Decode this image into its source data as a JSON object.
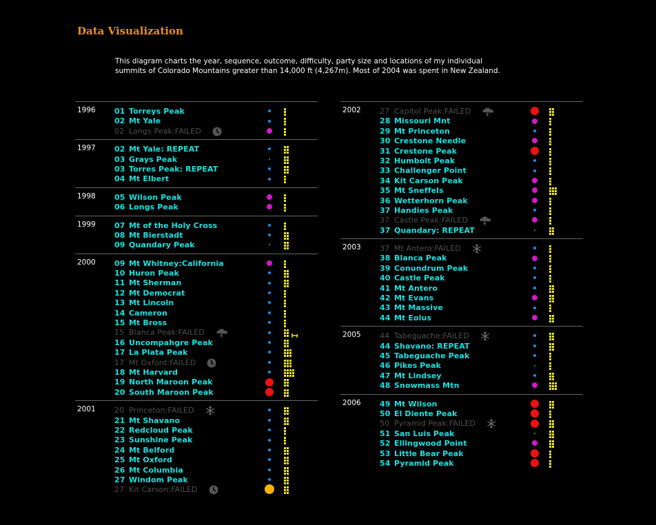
{
  "header": {
    "title": "Data Visualization",
    "intro": "This diagram charts the year, sequence, outcome, difficulty, party size and locations of my individual summits of Colorado Mountains greater than 14,000 ft (4,267m). Most of 2004 was spent in New Zealand."
  },
  "colors": {
    "entry": "#1de0e0",
    "failed": "#505050",
    "party": "#f2e81a",
    "outcome_blue": "#1e8ff0",
    "outcome_magenta": "#d21ac8",
    "outcome_green": "#22cc22",
    "outcome_red": "#ee1111",
    "outcome_orange": "#ffb300"
  },
  "columns": [
    {
      "groups": [
        {
          "year": "1996",
          "rows": [
            {
              "num": "01",
              "name": "Torreys Peak",
              "dot": "blue",
              "size": 4,
              "party": 1
            },
            {
              "num": "02",
              "name": "Mt Yale",
              "dot": "blue",
              "size": 4,
              "party": 1
            },
            {
              "num": "02",
              "name": "Longs Peak:FAILED",
              "failed": true,
              "cause": "clock-icon",
              "dot": "magenta",
              "size": 8,
              "party": 1
            }
          ]
        },
        {
          "year": "1997",
          "rows": [
            {
              "num": "02",
              "name": "Mt Yale: REPEAT",
              "dot": "blue",
              "size": 4,
              "party": 2
            },
            {
              "num": "03",
              "name": "Grays Peak",
              "dot": "green",
              "size": 2,
              "party": 2
            },
            {
              "num": "03",
              "name": "Torres Peak: REPEAT",
              "dot": "blue",
              "size": 4,
              "party": 2
            },
            {
              "num": "04",
              "name": "Mt Elbert",
              "dot": "blue",
              "size": 4,
              "party": 1
            }
          ]
        },
        {
          "year": "1998",
          "rows": [
            {
              "num": "05",
              "name": "Wilson Peak",
              "dot": "magenta",
              "size": 8,
              "party": 1
            },
            {
              "num": "06",
              "name": "Longs Peak",
              "dot": "magenta",
              "size": 8,
              "party": 1
            }
          ]
        },
        {
          "year": "1999",
          "rows": [
            {
              "num": "07",
              "name": "Mt of the Holy Cross",
              "dot": "blue",
              "size": 4,
              "party": 1
            },
            {
              "num": "08",
              "name": "Mt Bierstadt",
              "dot": "blue",
              "size": 4,
              "party": 2
            },
            {
              "num": "09",
              "name": "Quandary Peak",
              "dot": "green",
              "size": 2,
              "party": 2
            }
          ]
        },
        {
          "year": "2000",
          "rows": [
            {
              "num": "09",
              "name": "Mt Whitney:California",
              "dot": "magenta",
              "size": 8,
              "party": 1
            },
            {
              "num": "10",
              "name": "Huron Peak",
              "dot": "blue",
              "size": 4,
              "party": 2
            },
            {
              "num": "11",
              "name": "Mt Sherman",
              "dot": "blue",
              "size": 4,
              "party": 2
            },
            {
              "num": "12",
              "name": "Mt Democrat",
              "dot": "blue",
              "size": 4,
              "party": 1
            },
            {
              "num": "13",
              "name": "Mt Lincoln",
              "dot": "blue",
              "size": 4,
              "party": 1
            },
            {
              "num": "14",
              "name": "Cameron",
              "dot": "blue",
              "size": 4,
              "party": 1
            },
            {
              "num": "15",
              "name": "Mt Bross",
              "dot": "blue",
              "size": 4,
              "party": 1
            },
            {
              "num": "15",
              "name": "Blanca Peak:FAILED",
              "failed": true,
              "cause": "storm-icon",
              "dot": "blue",
              "size": 4,
              "party": 2,
              "dog": true
            },
            {
              "num": "16",
              "name": "Uncompahgre Peak",
              "dot": "blue",
              "size": 4,
              "party": 2
            },
            {
              "num": "17",
              "name": "La Plata Peak",
              "dot": "blue",
              "size": 4,
              "party": 3
            },
            {
              "num": "17",
              "name": "Mt Oxford:FAILED",
              "failed": true,
              "cause": "clock-icon",
              "dot": "blue",
              "size": 4,
              "party": 3
            },
            {
              "num": "18",
              "name": "Mt Harvard",
              "dot": "blue",
              "size": 4,
              "party": 4
            },
            {
              "num": "19",
              "name": "North Maroon Peak",
              "dot": "red",
              "size": 12,
              "party": 2
            },
            {
              "num": "20",
              "name": "South Maroon Peak",
              "dot": "red",
              "size": 12,
              "party": 2
            }
          ]
        },
        {
          "year": "2001",
          "rows": [
            {
              "num": "20",
              "name": "Princeton:FAILED",
              "failed": true,
              "cause": "snowflake-icon",
              "dot": "blue",
              "size": 4,
              "party": 2
            },
            {
              "num": "21",
              "name": "Mt Shavano",
              "dot": "blue",
              "size": 4,
              "party": 2
            },
            {
              "num": "22",
              "name": "Redcloud Peak",
              "dot": "blue",
              "size": 4,
              "party": 1
            },
            {
              "num": "23",
              "name": "Sunshine Peak",
              "dot": "blue",
              "size": 4,
              "party": 1
            },
            {
              "num": "24",
              "name": "Mt Belford",
              "dot": "blue",
              "size": 4,
              "party": 2
            },
            {
              "num": "25",
              "name": "Mt Oxford",
              "dot": "blue",
              "size": 4,
              "party": 2
            },
            {
              "num": "26",
              "name": "Mt Columbia",
              "dot": "blue",
              "size": 4,
              "party": 2
            },
            {
              "num": "27",
              "name": "Windom Peak",
              "dot": "blue",
              "size": 4,
              "party": 2
            },
            {
              "num": "27",
              "name": "Kit Carson:FAILED",
              "failed": true,
              "cause": "clock-icon",
              "dot": "orange",
              "size": 14,
              "party": 2
            }
          ]
        }
      ]
    },
    {
      "groups": [
        {
          "year": "2002",
          "rows": [
            {
              "num": "27",
              "name": "Capitol Peak:FAILED",
              "failed": true,
              "cause": "storm-icon",
              "dot": "red",
              "size": 12,
              "party": 2
            },
            {
              "num": "28",
              "name": "Missouri Mnt",
              "dot": "magenta",
              "size": 8,
              "party": 1
            },
            {
              "num": "29",
              "name": "Mt Princeton",
              "dot": "blue",
              "size": 4,
              "party": 1
            },
            {
              "num": "30",
              "name": "Crestone Needle",
              "dot": "magenta",
              "size": 8,
              "party": 1
            },
            {
              "num": "31",
              "name": "Crestone Peak",
              "dot": "red",
              "size": 12,
              "party": 1
            },
            {
              "num": "32",
              "name": "Humbolt Peak",
              "dot": "blue",
              "size": 4,
              "party": 1
            },
            {
              "num": "33",
              "name": "Challenger Point",
              "dot": "blue",
              "size": 4,
              "party": 1
            },
            {
              "num": "34",
              "name": "Kit Carson Peak",
              "dot": "magenta",
              "size": 8,
              "party": 1
            },
            {
              "num": "35",
              "name": "Mt Sneffels",
              "dot": "magenta",
              "size": 8,
              "party": 3
            },
            {
              "num": "36",
              "name": "Wetterhorn Peak",
              "dot": "magenta",
              "size": 8,
              "party": 1
            },
            {
              "num": "37",
              "name": "Handies Peak",
              "dot": "blue",
              "size": 4,
              "party": 1
            },
            {
              "num": "37",
              "name": "Castle Peak:FAILED",
              "failed": true,
              "cause": "storm-icon",
              "dot": "magenta",
              "size": 8,
              "party": 1
            },
            {
              "num": "37",
              "name": "Quandary: REPEAT",
              "dot": "green",
              "size": 2,
              "party": 2
            }
          ]
        },
        {
          "year": "2003",
          "rows": [
            {
              "num": "37",
              "name": "Mt Antero:FAILED",
              "failed": true,
              "cause": "snowflake-icon",
              "dot": "blue",
              "size": 4,
              "party": 1
            },
            {
              "num": "38",
              "name": "Blanca Peak",
              "dot": "magenta",
              "size": 8,
              "party": 1
            },
            {
              "num": "39",
              "name": "Conundrum Peak",
              "dot": "blue",
              "size": 4,
              "party": 1
            },
            {
              "num": "40",
              "name": "Castle Peak",
              "dot": "blue",
              "size": 4,
              "party": 1
            },
            {
              "num": "41",
              "name": "Mt Antero",
              "dot": "blue",
              "size": 4,
              "party": 2
            },
            {
              "num": "42",
              "name": "Mt Evans",
              "dot": "magenta",
              "size": 8,
              "party": 2
            },
            {
              "num": "43",
              "name": "Mt Massive",
              "dot": "blue",
              "size": 4,
              "party": 1
            },
            {
              "num": "44",
              "name": "Mt Eolus",
              "dot": "magenta",
              "size": 8,
              "party": 2
            }
          ]
        },
        {
          "year": "2005",
          "rows": [
            {
              "num": "44",
              "name": "Tabeguache:FAILED",
              "failed": true,
              "cause": "snowflake-icon",
              "dot": "blue",
              "size": 4,
              "party": 2
            },
            {
              "num": "44",
              "name": "Shavano: REPEAT",
              "dot": "blue",
              "size": 4,
              "party": 2
            },
            {
              "num": "45",
              "name": "Tabeguache Peak",
              "dot": "blue",
              "size": 4,
              "party": 1
            },
            {
              "num": "46",
              "name": "Pikes Peak",
              "dot": "green",
              "size": 2,
              "party": 1
            },
            {
              "num": "47",
              "name": "Mt Lindsey",
              "dot": "blue",
              "size": 4,
              "party": 2
            },
            {
              "num": "48",
              "name": "Snowmass Mtn",
              "dot": "magenta",
              "size": 8,
              "party": 3
            }
          ]
        },
        {
          "year": "2006",
          "rows": [
            {
              "num": "49",
              "name": "Mt Wilson",
              "dot": "red",
              "size": 12,
              "party": 2
            },
            {
              "num": "50",
              "name": "El Diente Peak",
              "dot": "red",
              "size": 12,
              "party": 1
            },
            {
              "num": "50",
              "name": "Pyramid Peak:FAILED",
              "failed": true,
              "cause": "snowflake-icon",
              "dot": "red",
              "size": 12,
              "party": 2
            },
            {
              "num": "51",
              "name": "San Luis Peak",
              "dot": "green",
              "size": 2,
              "party": 2
            },
            {
              "num": "52",
              "name": "Ellingwood Point",
              "dot": "magenta",
              "size": 8,
              "party": 2
            },
            {
              "num": "53",
              "name": "Little Bear Peak",
              "dot": "red",
              "size": 12,
              "party": 1
            },
            {
              "num": "54",
              "name": "Pyramid Peak",
              "dot": "red",
              "size": 12,
              "party": 1
            }
          ]
        }
      ]
    }
  ]
}
